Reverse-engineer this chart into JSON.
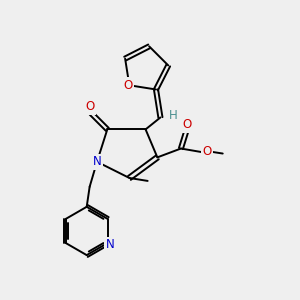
{
  "background_color": "#efefef",
  "bond_color": "#000000",
  "nitrogen_color": "#0000cc",
  "oxygen_color": "#cc0000",
  "teal_color": "#4a9090",
  "font_size_atom": 8.5,
  "line_width": 1.4,
  "figsize": [
    3.0,
    3.0
  ],
  "dpi": 100,
  "xlim": [
    0,
    10
  ],
  "ylim": [
    0,
    10
  ]
}
